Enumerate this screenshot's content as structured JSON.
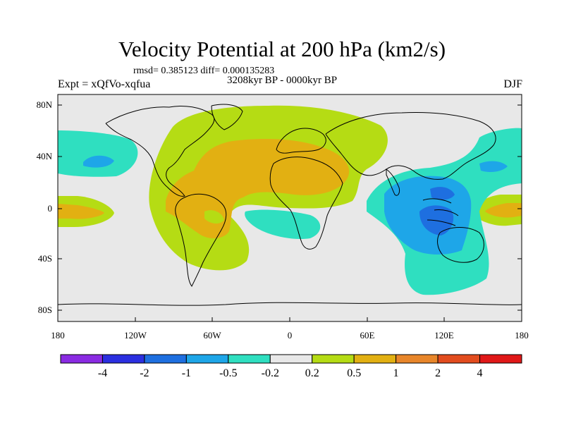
{
  "title": "Velocity Potential at 200 hPa (km2/s)",
  "stats": "rmsd= 0.385123 diff= 0.000135283",
  "period": "3208kyr BP - 0000kyr BP",
  "experiment": "Expt = xQfVo-xqfua",
  "season": "DJF",
  "y_axis": {
    "labels": [
      "80N",
      "40N",
      "0",
      "40S",
      "80S"
    ]
  },
  "x_axis": {
    "labels": [
      "180",
      "120W",
      "60W",
      "0",
      "60E",
      "120E",
      "180"
    ]
  },
  "colorbar": {
    "colors": [
      "#8a2be2",
      "#2b2fe0",
      "#1e6fe0",
      "#1ea6e8",
      "#2fdfc0",
      "#e8e8e8",
      "#b5dc14",
      "#e2b012",
      "#e8862a",
      "#e24c1e",
      "#e01818"
    ],
    "labels": [
      "-4",
      "-2",
      "-1",
      "-0.5",
      "-0.2",
      "0.2",
      "0.5",
      "1",
      "2",
      "4"
    ]
  }
}
